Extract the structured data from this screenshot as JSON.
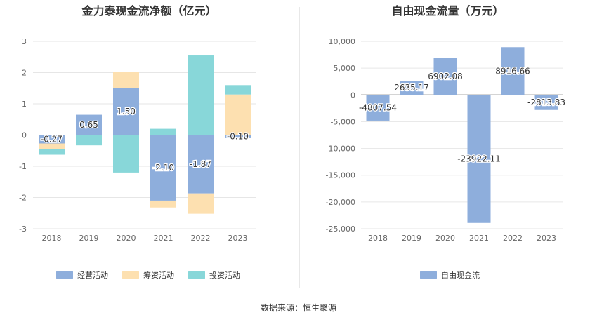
{
  "chart_data": [
    {
      "type": "bar",
      "stacked": true,
      "title": "金力泰现金流净额（亿元）",
      "categories": [
        "2018",
        "2019",
        "2020",
        "2021",
        "2022",
        "2023"
      ],
      "ylim": [
        -3,
        3
      ],
      "yticks": [
        "3",
        "2",
        "1",
        "0",
        "-1",
        "-2",
        "-3"
      ],
      "series": [
        {
          "name": "经营活动",
          "color": "#8eaedc",
          "values": [
            -0.27,
            0.65,
            1.5,
            -2.1,
            -1.87,
            -0.1
          ],
          "labels": [
            "-0.27",
            "0.65",
            "1.50",
            "-2.10",
            "-1.87",
            "-0.10"
          ]
        },
        {
          "name": "筹资活动",
          "color": "#fde0b0",
          "values": [
            -0.18,
            0.0,
            0.53,
            -0.22,
            -0.65,
            1.3
          ]
        },
        {
          "name": "投资活动",
          "color": "#88d7d9",
          "values": [
            -0.18,
            -0.33,
            -1.2,
            0.2,
            2.55,
            0.3
          ]
        }
      ],
      "grid": true,
      "legend": "bottom"
    },
    {
      "type": "bar",
      "title": "自由现金流量（万元）",
      "categories": [
        "2018",
        "2019",
        "2020",
        "2021",
        "2022",
        "2023"
      ],
      "ylim": [
        -25000,
        10000
      ],
      "yticks": [
        "10,000",
        "5,000",
        "0",
        "-5,000",
        "-10,000",
        "-15,000",
        "-20,000",
        "-25,000"
      ],
      "series": [
        {
          "name": "自由现金流",
          "color": "#8eaedc",
          "values": [
            -4807.54,
            2635.17,
            6902.08,
            -23922.11,
            8916.66,
            -2813.83
          ],
          "labels": [
            "-4807.54",
            "2635.17",
            "6902.08",
            "-23922.11",
            "8916.66",
            "-2813.83"
          ]
        }
      ],
      "grid": true,
      "legend": "bottom"
    }
  ],
  "source": "数据来源：恒生聚源"
}
